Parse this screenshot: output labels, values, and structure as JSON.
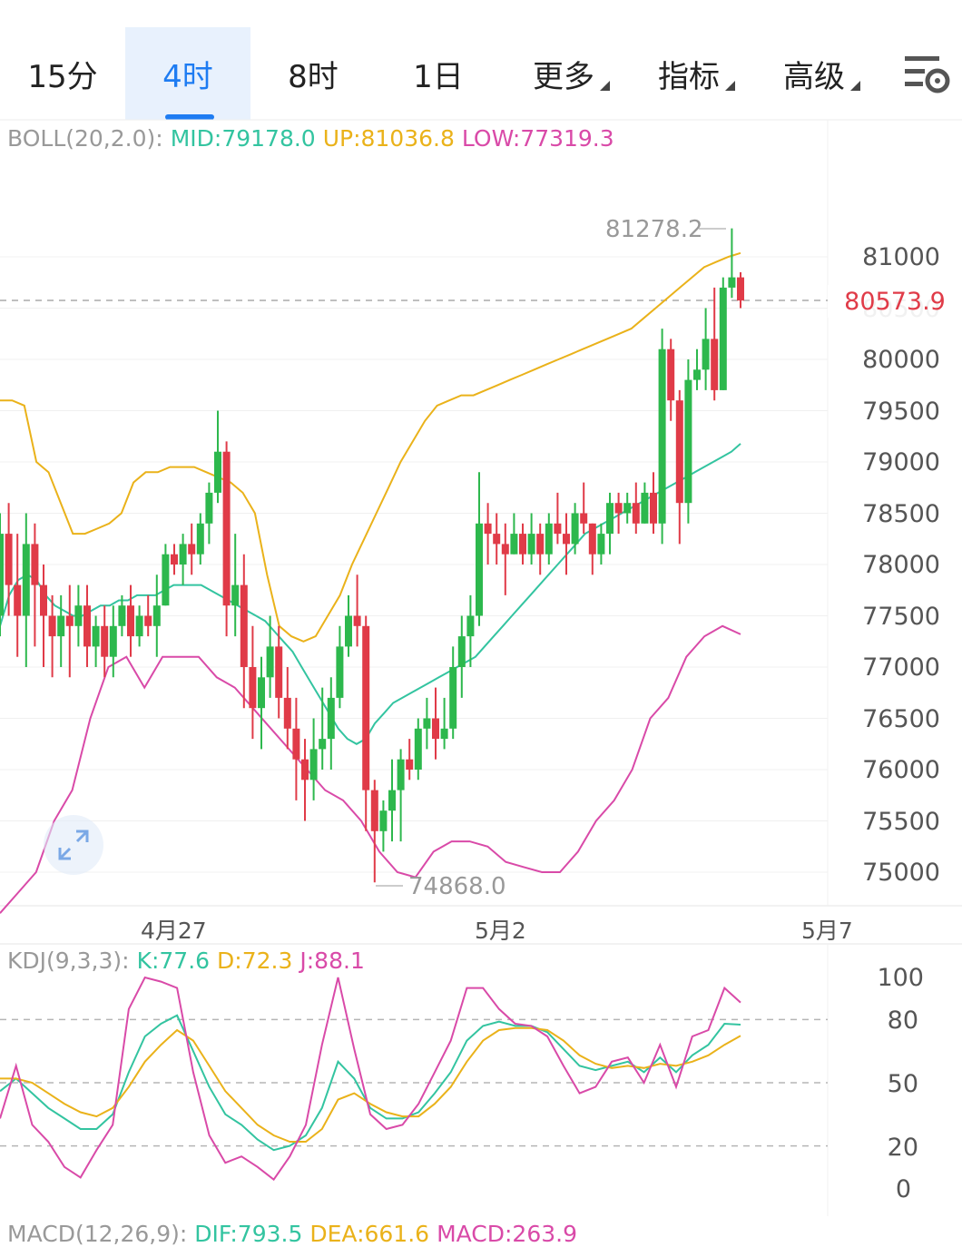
{
  "tabs": [
    {
      "label": "15分",
      "active": false,
      "dropdown": false
    },
    {
      "label": "4时",
      "active": true,
      "dropdown": false
    },
    {
      "label": "8时",
      "active": false,
      "dropdown": false
    },
    {
      "label": "1日",
      "active": false,
      "dropdown": false
    },
    {
      "label": "更多",
      "active": false,
      "dropdown": true
    },
    {
      "label": "指标",
      "active": false,
      "dropdown": true
    },
    {
      "label": "高级",
      "active": false,
      "dropdown": true
    }
  ],
  "settings_icon": "chart-settings-icon",
  "boll": {
    "name": "BOLL(20,2.0):",
    "mid": "MID:79178.0",
    "up": "UP:81036.8",
    "low": "LOW:77319.3"
  },
  "kdj": {
    "name": "KDJ(9,3,3):",
    "k": "K:77.6",
    "d": "D:72.3",
    "j": "J:88.1"
  },
  "macd": {
    "name": "MACD(12,26,9):",
    "dif": "DIF:793.5",
    "dea": "DEA:661.6",
    "macd": "MACD:263.9"
  },
  "price": {
    "current": "80573.9",
    "high_label": "81278.2",
    "low_label": "74868.0"
  },
  "price_axis": [
    "81000",
    "80500",
    "80000",
    "79500",
    "79000",
    "78500",
    "78000",
    "77500",
    "77000",
    "76500",
    "76000",
    "75500",
    "75000"
  ],
  "kdj_axis": [
    "100",
    "80",
    "50",
    "20",
    "0"
  ],
  "date_axis": [
    "4月27",
    "5月2",
    "5月7"
  ],
  "colors": {
    "up": "#2db84d",
    "down": "#e03b48",
    "mid": "#33c4a0",
    "upper": "#eab21a",
    "lower": "#d94aa8",
    "accent": "#1e7cf2"
  },
  "chart_data": [
    {
      "type": "candlestick",
      "title": "BOLL(20,2.0)",
      "ylim": [
        74700,
        81400
      ],
      "x_ticks": [
        "4月27",
        "5月2",
        "5月7"
      ],
      "candles": [
        [
          77500,
          78300,
          77300,
          78500
        ],
        [
          78300,
          77800,
          77500,
          78600
        ],
        [
          77800,
          77500,
          77100,
          78300
        ],
        [
          77500,
          78200,
          77000,
          78500
        ],
        [
          78200,
          77800,
          77200,
          78400
        ],
        [
          77800,
          77500,
          77000,
          78000
        ],
        [
          77500,
          77300,
          76900,
          77700
        ],
        [
          77300,
          77500,
          77000,
          77700
        ],
        [
          77500,
          77400,
          76900,
          77800
        ],
        [
          77400,
          77600,
          77200,
          77800
        ],
        [
          77600,
          77200,
          77000,
          77800
        ],
        [
          77200,
          77400,
          77000,
          77500
        ],
        [
          77400,
          77100,
          76900,
          77600
        ],
        [
          77100,
          77400,
          76900,
          77600
        ],
        [
          77400,
          77600,
          77300,
          77700
        ],
        [
          77600,
          77300,
          77100,
          77800
        ],
        [
          77300,
          77500,
          77200,
          77600
        ],
        [
          77500,
          77400,
          77300,
          77700
        ],
        [
          77400,
          77600,
          77100,
          77900
        ],
        [
          77600,
          78100,
          77600,
          78200
        ],
        [
          78100,
          78000,
          77900,
          78200
        ],
        [
          78000,
          78200,
          77800,
          78300
        ],
        [
          78200,
          78100,
          77900,
          78400
        ],
        [
          78100,
          78400,
          78000,
          78500
        ],
        [
          78400,
          78700,
          78200,
          78800
        ],
        [
          78700,
          79100,
          78600,
          79500
        ],
        [
          79100,
          77600,
          77300,
          79200
        ],
        [
          77600,
          77800,
          77300,
          78300
        ],
        [
          77800,
          77000,
          76600,
          78100
        ],
        [
          77000,
          76600,
          76300,
          77400
        ],
        [
          76600,
          76900,
          76200,
          77100
        ],
        [
          76900,
          77200,
          76700,
          77500
        ],
        [
          77200,
          76700,
          76500,
          77400
        ],
        [
          76700,
          76400,
          76200,
          77000
        ],
        [
          76400,
          76100,
          75700,
          76700
        ],
        [
          76100,
          75900,
          75500,
          76300
        ],
        [
          75900,
          76200,
          75700,
          76500
        ],
        [
          76200,
          76300,
          76000,
          76800
        ],
        [
          76300,
          76700,
          76000,
          76900
        ],
        [
          76700,
          77200,
          76600,
          77400
        ],
        [
          77200,
          77500,
          77100,
          77700
        ],
        [
          77500,
          77400,
          77200,
          77900
        ],
        [
          77400,
          75800,
          75400,
          77500
        ],
        [
          75800,
          75400,
          74900,
          75900
        ],
        [
          75400,
          75600,
          75200,
          75700
        ],
        [
          75600,
          75800,
          75300,
          76100
        ],
        [
          75800,
          76100,
          75300,
          76200
        ],
        [
          76100,
          76000,
          75900,
          76300
        ],
        [
          76000,
          76400,
          75900,
          76500
        ],
        [
          76400,
          76500,
          76200,
          76700
        ],
        [
          76500,
          76300,
          76100,
          76800
        ],
        [
          76300,
          76400,
          76200,
          76700
        ],
        [
          76400,
          77000,
          76300,
          77200
        ],
        [
          77000,
          77300,
          76700,
          77500
        ],
        [
          77300,
          77500,
          77000,
          77700
        ],
        [
          77500,
          78400,
          77400,
          78900
        ],
        [
          78400,
          78300,
          78000,
          78600
        ],
        [
          78300,
          78200,
          78000,
          78500
        ],
        [
          78200,
          78100,
          77700,
          78400
        ],
        [
          78100,
          78300,
          78100,
          78500
        ],
        [
          78300,
          78100,
          78000,
          78400
        ],
        [
          78100,
          78300,
          78000,
          78500
        ],
        [
          78300,
          78100,
          77900,
          78400
        ],
        [
          78100,
          78400,
          78000,
          78500
        ],
        [
          78400,
          78300,
          78200,
          78700
        ],
        [
          78300,
          78200,
          77900,
          78500
        ],
        [
          78200,
          78500,
          78100,
          78600
        ],
        [
          78500,
          78400,
          78300,
          78800
        ],
        [
          78400,
          78100,
          77900,
          78400
        ],
        [
          78100,
          78300,
          78000,
          78400
        ],
        [
          78300,
          78600,
          78100,
          78700
        ],
        [
          78600,
          78500,
          78300,
          78700
        ],
        [
          78500,
          78600,
          78400,
          78700
        ],
        [
          78600,
          78400,
          78300,
          78800
        ],
        [
          78400,
          78700,
          78400,
          78800
        ],
        [
          78700,
          78400,
          78300,
          78900
        ],
        [
          78400,
          80100,
          78200,
          80300
        ],
        [
          80100,
          79600,
          79400,
          80200
        ],
        [
          79600,
          78600,
          78200,
          79700
        ],
        [
          78600,
          79800,
          78400,
          80000
        ],
        [
          79800,
          79900,
          79700,
          80100
        ],
        [
          79900,
          80200,
          79700,
          80500
        ],
        [
          80200,
          79700,
          79600,
          80700
        ],
        [
          79700,
          80700,
          79700,
          80800
        ],
        [
          80700,
          80800,
          80600,
          81278.2
        ],
        [
          80800,
          80573.9,
          80500,
          80850
        ]
      ],
      "series": [
        {
          "name": "MID",
          "values": [
            77400,
            77700,
            77850,
            77900,
            77850,
            77700,
            77600,
            77550,
            77500,
            77500,
            77550,
            77600,
            77600,
            77650,
            77650,
            77700,
            77700,
            77700,
            77750,
            77800,
            77800,
            77800,
            77800,
            77750,
            77700,
            77650,
            77600,
            77550,
            77500,
            77450,
            77350,
            77250,
            77150,
            77000,
            76850,
            76700,
            76550,
            76400,
            76300,
            76250,
            76300,
            76450,
            76550,
            76650,
            76700,
            76750,
            76800,
            76850,
            76900,
            76950,
            77000,
            77050,
            77100,
            77200,
            77300,
            77400,
            77500,
            77600,
            77700,
            77800,
            77900,
            78000,
            78100,
            78200,
            78300,
            78350,
            78400,
            78450,
            78500,
            78550,
            78600,
            78650,
            78700,
            78750,
            78800,
            78850,
            78900,
            78950,
            79000,
            79050,
            79100,
            79178
          ]
        },
        {
          "name": "UP",
          "values": [
            79600,
            79600,
            79550,
            79000,
            78900,
            78600,
            78300,
            78300,
            78350,
            78400,
            78500,
            78800,
            78900,
            78900,
            78950,
            78950,
            78950,
            78900,
            78850,
            78800,
            78700,
            78500,
            77900,
            77400,
            77300,
            77250,
            77300,
            77500,
            77700,
            78000,
            78250,
            78500,
            78750,
            79000,
            79200,
            79400,
            79550,
            79600,
            79650,
            79650,
            79700,
            79750,
            79800,
            79850,
            79900,
            79950,
            80000,
            80050,
            80100,
            80150,
            80200,
            80250,
            80300,
            80400,
            80500,
            80600,
            80700,
            80800,
            80900,
            80950,
            81000,
            81036.8
          ]
        },
        {
          "name": "LOW",
          "values": [
            74600,
            74800,
            75000,
            75500,
            75800,
            76500,
            77000,
            77100,
            76800,
            77100,
            77100,
            77100,
            76900,
            76800,
            76600,
            76400,
            76200,
            76000,
            75800,
            75700,
            75500,
            75200,
            75000,
            74950,
            75200,
            75300,
            75300,
            75250,
            75100,
            75050,
            75000,
            75000,
            75200,
            75500,
            75700,
            76000,
            76500,
            76700,
            77100,
            77300,
            77400,
            77319.3
          ]
        }
      ]
    },
    {
      "type": "line",
      "title": "KDJ(9,3,3)",
      "ylim": [
        0,
        100
      ],
      "series": [
        {
          "name": "K",
          "values": [
            46,
            52,
            45,
            38,
            33,
            28,
            28,
            35,
            55,
            72,
            78,
            82,
            65,
            48,
            35,
            30,
            23,
            18,
            20,
            25,
            38,
            60,
            52,
            38,
            33,
            33,
            36,
            45,
            55,
            70,
            77,
            79,
            77,
            77,
            74,
            66,
            58,
            56,
            58,
            60,
            55,
            62,
            55,
            63,
            68,
            78,
            77.6
          ]
        },
        {
          "name": "D",
          "values": [
            52,
            52,
            50,
            45,
            40,
            36,
            34,
            38,
            48,
            60,
            68,
            75,
            70,
            58,
            46,
            38,
            30,
            25,
            22,
            22,
            28,
            42,
            45,
            40,
            36,
            34,
            34,
            40,
            48,
            60,
            70,
            75,
            76,
            76,
            75,
            70,
            63,
            59,
            57,
            58,
            57,
            59,
            58,
            60,
            63,
            68,
            72.3
          ]
        },
        {
          "name": "J",
          "values": [
            33,
            58,
            30,
            22,
            10,
            5,
            18,
            30,
            85,
            100,
            98,
            95,
            55,
            25,
            12,
            15,
            10,
            4,
            15,
            30,
            68,
            100,
            66,
            35,
            28,
            30,
            40,
            55,
            70,
            95,
            95,
            85,
            78,
            77,
            72,
            58,
            45,
            48,
            60,
            62,
            50,
            68,
            48,
            72,
            75,
            95,
            88.1
          ]
        }
      ]
    }
  ]
}
